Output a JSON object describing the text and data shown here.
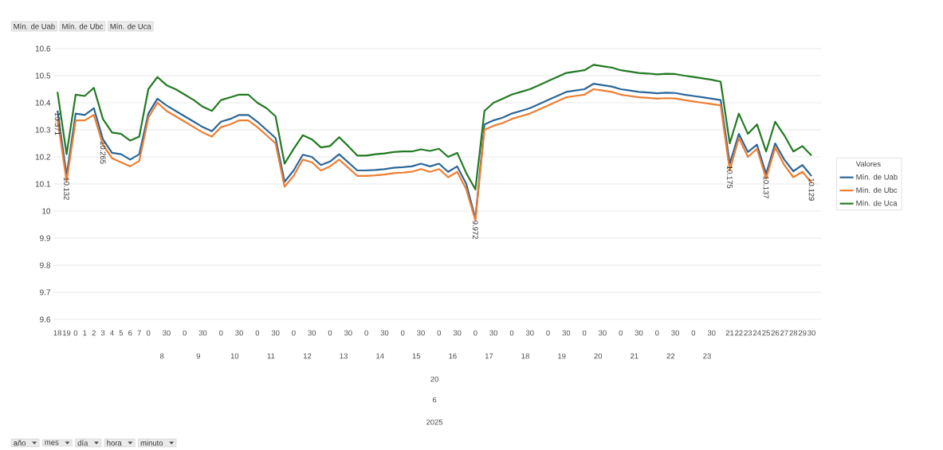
{
  "chart_data": {
    "type": "line",
    "categories": [
      "18",
      "19",
      "0",
      "1",
      "2",
      "3",
      "4",
      "5",
      "6",
      "7",
      "0",
      null,
      "30",
      null,
      "0",
      null,
      "30",
      null,
      "0",
      null,
      "30",
      null,
      "0",
      null,
      "30",
      null,
      "0",
      null,
      "30",
      null,
      "0",
      null,
      "30",
      null,
      "0",
      null,
      "30",
      null,
      "0",
      null,
      "30",
      null,
      "0",
      null,
      "30",
      null,
      "0",
      null,
      "30",
      null,
      "0",
      null,
      "30",
      null,
      "0",
      null,
      "30",
      null,
      "0",
      null,
      "30",
      null,
      "0",
      null,
      "30",
      null,
      "0",
      null,
      "30",
      null,
      "0",
      null,
      "30",
      null,
      "21",
      "22",
      "23",
      "24",
      "25",
      "26",
      "27",
      "28",
      "29",
      "30"
    ],
    "series": [
      {
        "name": "Mín. de Uab",
        "color": "#2a6699",
        "values": [
          10.371,
          10.132,
          10.36,
          10.355,
          10.38,
          10.265,
          10.215,
          10.21,
          10.19,
          10.21,
          10.36,
          10.415,
          10.39,
          10.37,
          10.35,
          10.33,
          10.31,
          10.295,
          10.33,
          10.34,
          10.355,
          10.355,
          10.33,
          10.3,
          10.27,
          10.108,
          10.15,
          10.208,
          10.2,
          10.17,
          10.183,
          10.21,
          10.18,
          10.15,
          10.15,
          10.152,
          10.155,
          10.16,
          10.162,
          10.165,
          10.175,
          10.165,
          10.175,
          10.145,
          10.165,
          10.1,
          9.972,
          10.32,
          10.335,
          10.345,
          10.36,
          10.37,
          10.38,
          10.395,
          10.41,
          10.425,
          10.44,
          10.445,
          10.45,
          10.47,
          10.465,
          10.46,
          10.45,
          10.445,
          10.44,
          10.438,
          10.435,
          10.437,
          10.436,
          10.43,
          10.425,
          10.42,
          10.415,
          10.41,
          10.175,
          10.285,
          10.218,
          10.245,
          10.137,
          10.25,
          10.19,
          10.147,
          10.17,
          10.129
        ],
        "value_labels": [
          "10.371",
          "10.132",
          null,
          null,
          null,
          "10.265",
          null,
          null,
          null,
          null,
          null,
          null,
          null,
          null,
          null,
          null,
          null,
          null,
          null,
          null,
          null,
          null,
          null,
          null,
          null,
          null,
          null,
          null,
          null,
          null,
          null,
          null,
          null,
          null,
          null,
          null,
          null,
          null,
          null,
          null,
          null,
          null,
          null,
          null,
          null,
          null,
          "9.972",
          null,
          null,
          null,
          null,
          null,
          null,
          null,
          null,
          null,
          null,
          null,
          null,
          null,
          null,
          null,
          null,
          null,
          null,
          null,
          null,
          null,
          null,
          null,
          null,
          null,
          null,
          null,
          "10.175",
          null,
          null,
          null,
          "10.137",
          null,
          null,
          null,
          null,
          "10.129"
        ]
      },
      {
        "name": "Mín. de Ubc",
        "color": "#ed7d31",
        "values": [
          10.34,
          10.11,
          10.335,
          10.335,
          10.355,
          10.245,
          10.195,
          10.18,
          10.165,
          10.185,
          10.345,
          10.4,
          10.37,
          10.35,
          10.33,
          10.31,
          10.29,
          10.275,
          10.31,
          10.32,
          10.335,
          10.335,
          10.31,
          10.28,
          10.25,
          10.09,
          10.13,
          10.19,
          10.18,
          10.15,
          10.165,
          10.19,
          10.16,
          10.13,
          10.13,
          10.132,
          10.135,
          10.14,
          10.142,
          10.145,
          10.155,
          10.145,
          10.155,
          10.125,
          10.145,
          10.08,
          9.965,
          10.3,
          10.315,
          10.325,
          10.34,
          10.35,
          10.36,
          10.375,
          10.39,
          10.405,
          10.42,
          10.425,
          10.43,
          10.45,
          10.445,
          10.44,
          10.43,
          10.425,
          10.42,
          10.418,
          10.415,
          10.417,
          10.416,
          10.41,
          10.405,
          10.4,
          10.395,
          10.39,
          10.15,
          10.27,
          10.2,
          10.23,
          10.12,
          10.235,
          10.17,
          10.125,
          10.145,
          10.105
        ]
      },
      {
        "name": "Mín. de Uca",
        "color": "#217a21",
        "values": [
          10.44,
          10.21,
          10.43,
          10.425,
          10.455,
          10.34,
          10.29,
          10.285,
          10.26,
          10.275,
          10.45,
          10.495,
          10.465,
          10.45,
          10.43,
          10.41,
          10.385,
          10.37,
          10.41,
          10.42,
          10.43,
          10.43,
          10.4,
          10.38,
          10.35,
          10.175,
          10.23,
          10.28,
          10.265,
          10.235,
          10.24,
          10.273,
          10.24,
          10.205,
          10.205,
          10.21,
          10.213,
          10.218,
          10.22,
          10.22,
          10.228,
          10.222,
          10.23,
          10.2,
          10.215,
          10.14,
          10.08,
          10.37,
          10.4,
          10.415,
          10.43,
          10.44,
          10.45,
          10.465,
          10.48,
          10.495,
          10.51,
          10.515,
          10.52,
          10.54,
          10.535,
          10.53,
          10.52,
          10.515,
          10.51,
          10.508,
          10.505,
          10.507,
          10.506,
          10.5,
          10.495,
          10.49,
          10.485,
          10.478,
          10.25,
          10.36,
          10.285,
          10.32,
          10.22,
          10.33,
          10.28,
          10.22,
          10.24,
          10.205
        ]
      }
    ],
    "ylim": [
      9.6,
      10.6
    ],
    "yticks": [
      9.6,
      9.7,
      9.8,
      9.9,
      10,
      10.1,
      10.2,
      10.3,
      10.4,
      10.5,
      10.6
    ],
    "grid": "y",
    "legend": "right",
    "legend_title": "Valores",
    "marker": "none",
    "line_style": "solid",
    "annotations": [
      "Mín. de Uab",
      "Mín. de Ubc",
      "Mín. de Uca",
      "8",
      "9",
      "10",
      "11",
      "12",
      "13",
      "14",
      "15",
      "16",
      "17",
      "18",
      "19",
      "20",
      "21",
      "22",
      "23",
      "20",
      "6",
      "2025",
      "año",
      "mes",
      "día",
      "hora",
      "minuto"
    ]
  }
}
